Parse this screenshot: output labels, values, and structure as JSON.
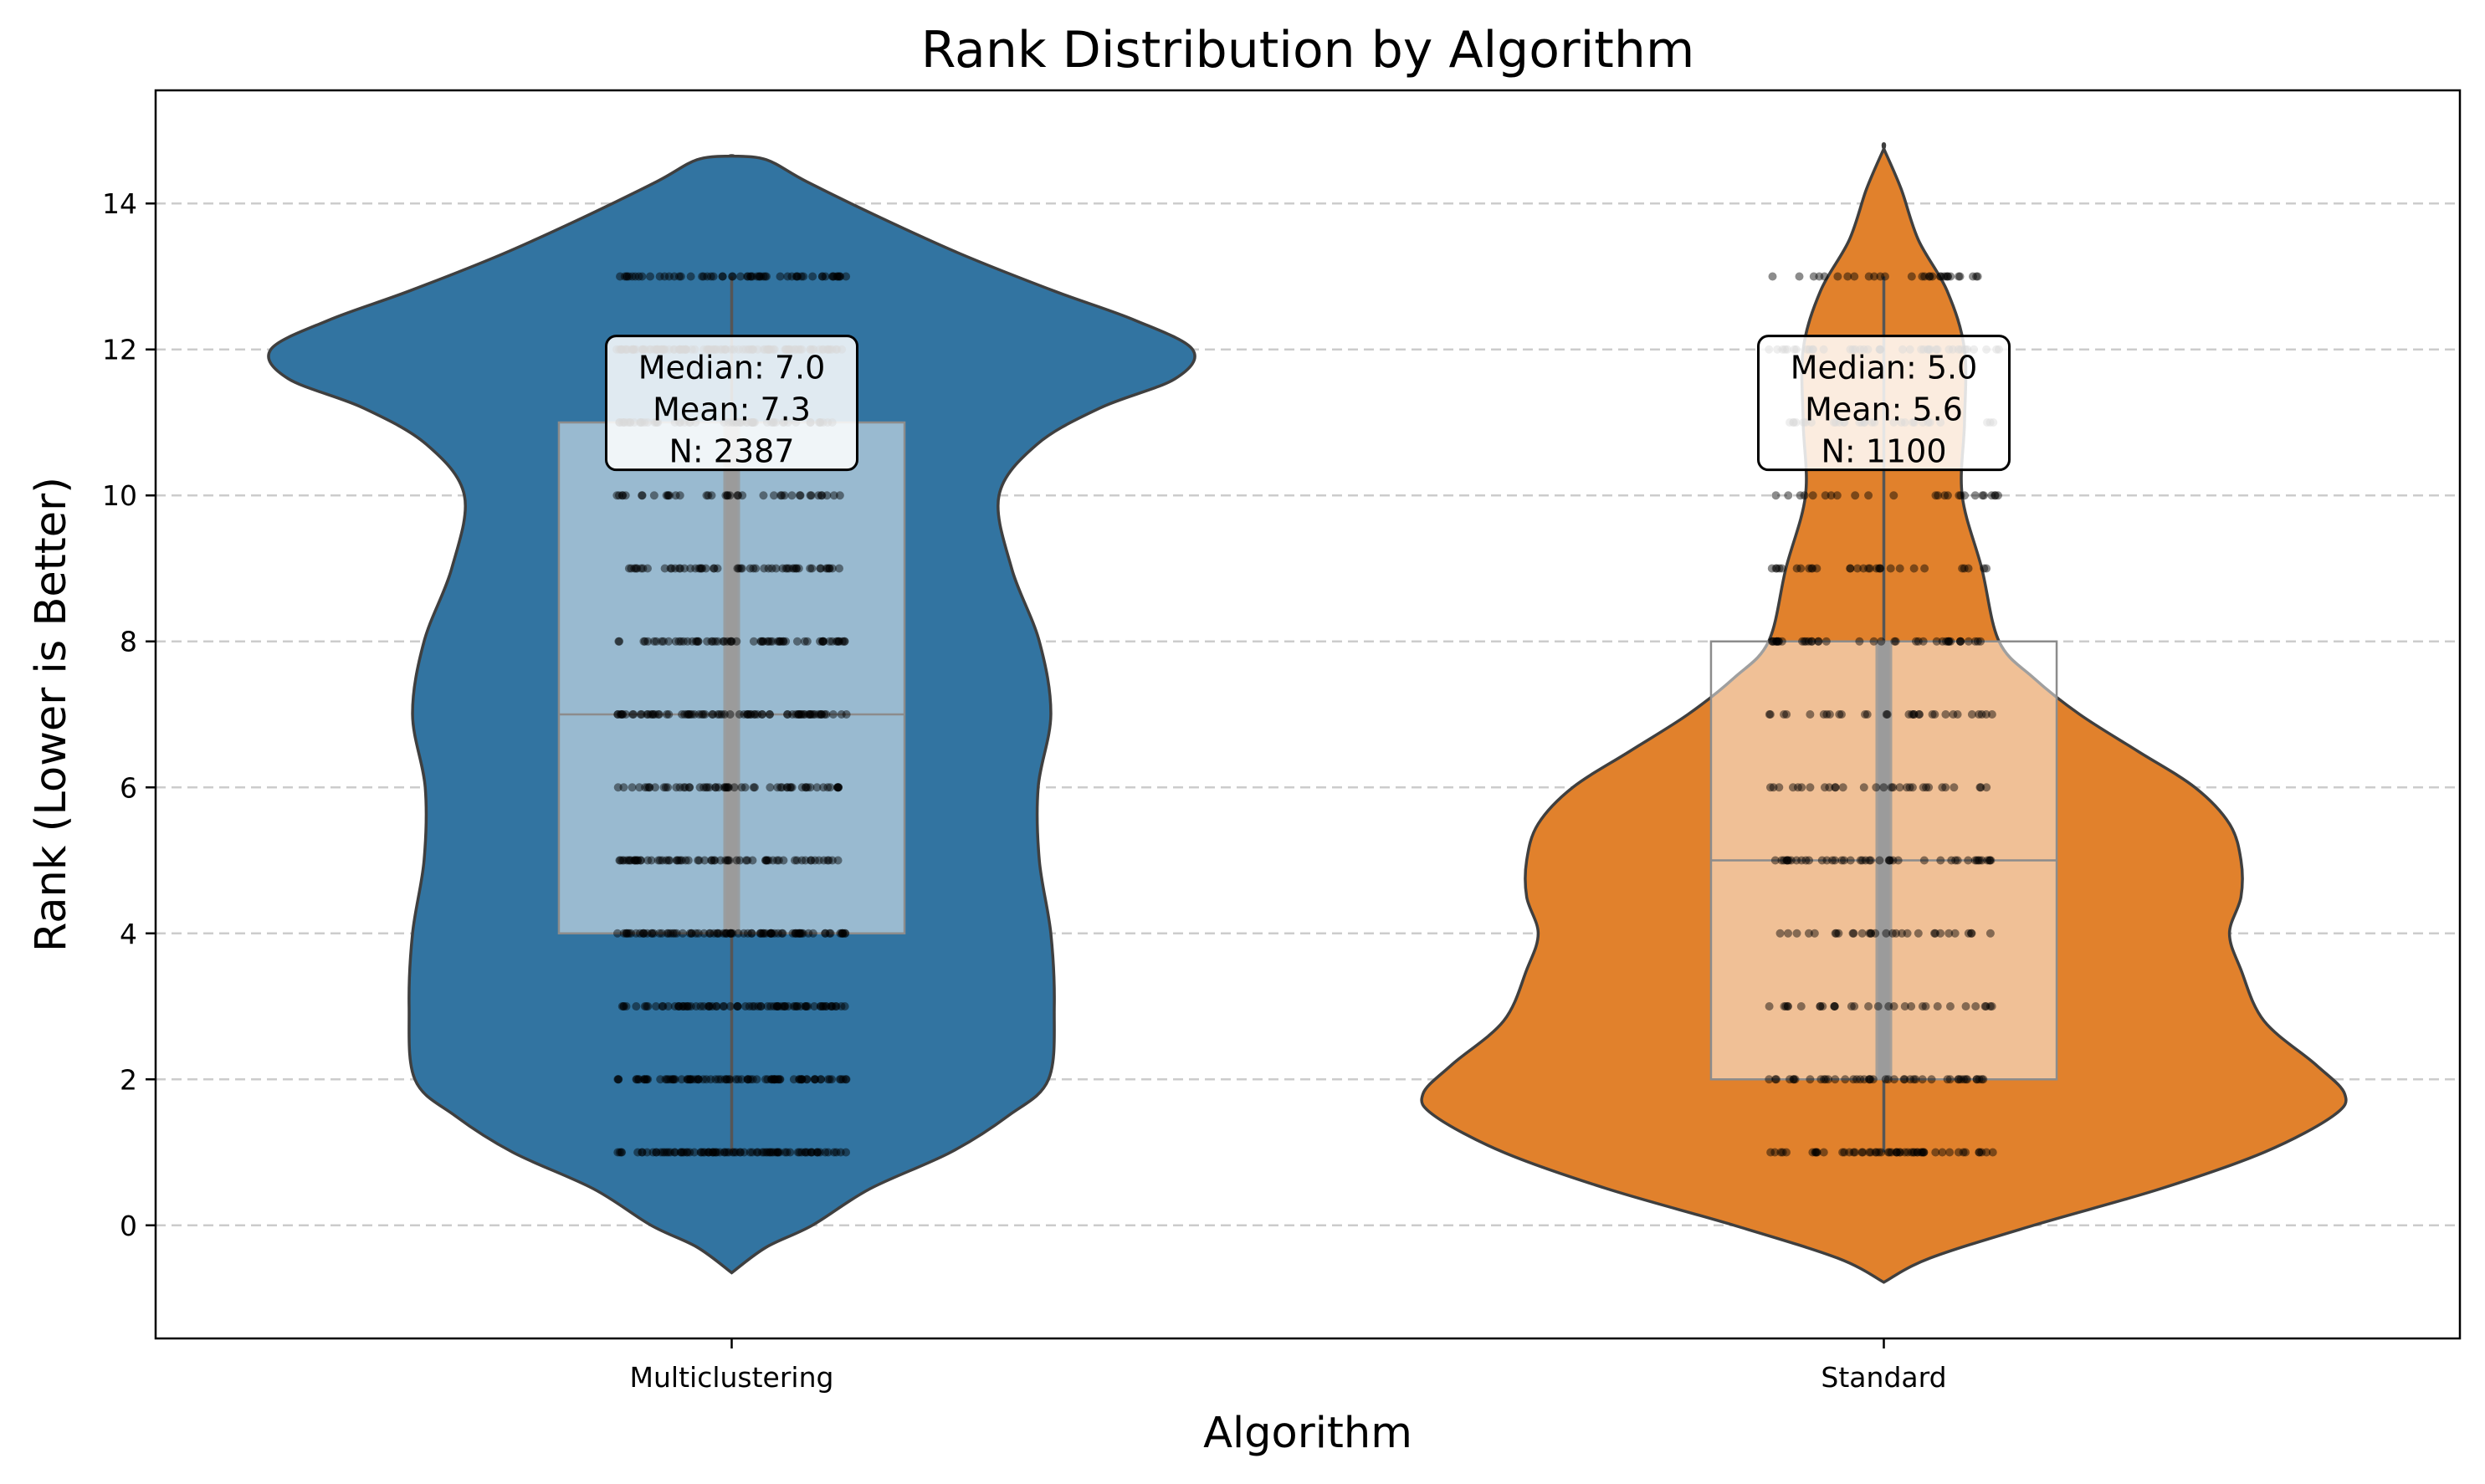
{
  "chart_data": {
    "type": "violin",
    "title": "Rank Distribution by Algorithm",
    "xlabel": "Algorithm",
    "ylabel": "Rank (Lower is Better)",
    "categories": [
      "Multiclustering",
      "Standard"
    ],
    "ylim": [
      -1.55,
      15.55
    ],
    "yticks": [
      0,
      2,
      4,
      6,
      8,
      10,
      12,
      14
    ],
    "grid": {
      "y": true,
      "style": "dashed"
    },
    "colors": {
      "Multiclustering": "#3274a1",
      "Standard": "#e1812c",
      "box": "#ffffff",
      "points": "#000000",
      "grid": "#cccccc"
    },
    "series": [
      {
        "category": "Multiclustering",
        "box": {
          "q1": 4,
          "median": 7,
          "q3": 11,
          "whisker_low": 1,
          "whisker_high": 13
        },
        "stats": {
          "median": "Median: 7.0",
          "mean": "Mean: 7.3",
          "n": "N: 2387"
        },
        "density": [
          [
            -0.65,
            0.0
          ],
          [
            -0.3,
            0.03
          ],
          [
            0.0,
            0.07
          ],
          [
            0.5,
            0.12
          ],
          [
            1.0,
            0.19
          ],
          [
            1.5,
            0.24
          ],
          [
            2.0,
            0.275
          ],
          [
            3.0,
            0.28
          ],
          [
            4.0,
            0.277
          ],
          [
            5.0,
            0.267
          ],
          [
            6.0,
            0.266
          ],
          [
            7.0,
            0.277
          ],
          [
            8.0,
            0.267
          ],
          [
            9.0,
            0.243
          ],
          [
            10.0,
            0.232
          ],
          [
            10.7,
            0.265
          ],
          [
            11.2,
            0.32
          ],
          [
            11.6,
            0.385
          ],
          [
            12.0,
            0.4
          ],
          [
            12.4,
            0.35
          ],
          [
            12.8,
            0.28
          ],
          [
            13.3,
            0.2
          ],
          [
            13.8,
            0.13
          ],
          [
            14.3,
            0.065
          ],
          [
            14.6,
            0.03
          ],
          [
            14.65,
            0.0
          ]
        ],
        "points": [
          {
            "rank": 1,
            "count": 90
          },
          {
            "rank": 2,
            "count": 90
          },
          {
            "rank": 3,
            "count": 80
          },
          {
            "rank": 4,
            "count": 90
          },
          {
            "rank": 5,
            "count": 70
          },
          {
            "rank": 6,
            "count": 60
          },
          {
            "rank": 7,
            "count": 80
          },
          {
            "rank": 8,
            "count": 65
          },
          {
            "rank": 9,
            "count": 55
          },
          {
            "rank": 10,
            "count": 40
          },
          {
            "rank": 11,
            "count": 60
          },
          {
            "rank": 12,
            "count": 110
          },
          {
            "rank": 13,
            "count": 60
          }
        ]
      },
      {
        "category": "Standard",
        "box": {
          "q1": 2,
          "median": 5,
          "q3": 8,
          "whisker_low": 1,
          "whisker_high": 13
        },
        "stats": {
          "median": "Median: 5.0",
          "mean": "Mean: 5.6",
          "n": "N: 1100"
        },
        "density": [
          [
            -0.78,
            0.0
          ],
          [
            -0.45,
            0.04
          ],
          [
            0.0,
            0.13
          ],
          [
            0.5,
            0.24
          ],
          [
            1.0,
            0.33
          ],
          [
            1.5,
            0.39
          ],
          [
            1.8,
            0.4
          ],
          [
            2.2,
            0.375
          ],
          [
            2.8,
            0.33
          ],
          [
            3.5,
            0.31
          ],
          [
            4.0,
            0.3
          ],
          [
            4.5,
            0.31
          ],
          [
            5.0,
            0.31
          ],
          [
            5.5,
            0.3
          ],
          [
            6.0,
            0.27
          ],
          [
            6.5,
            0.22
          ],
          [
            7.0,
            0.17
          ],
          [
            7.5,
            0.13
          ],
          [
            8.0,
            0.1
          ],
          [
            9.0,
            0.085
          ],
          [
            10.0,
            0.068
          ],
          [
            11.0,
            0.07
          ],
          [
            12.0,
            0.07
          ],
          [
            12.8,
            0.055
          ],
          [
            13.5,
            0.03
          ],
          [
            14.2,
            0.015
          ],
          [
            14.75,
            0.0
          ]
        ],
        "points": [
          {
            "rank": 1,
            "count": 55
          },
          {
            "rank": 2,
            "count": 45
          },
          {
            "rank": 3,
            "count": 30
          },
          {
            "rank": 4,
            "count": 30
          },
          {
            "rank": 5,
            "count": 45
          },
          {
            "rank": 6,
            "count": 30
          },
          {
            "rank": 7,
            "count": 30
          },
          {
            "rank": 8,
            "count": 40
          },
          {
            "rank": 9,
            "count": 30
          },
          {
            "rank": 10,
            "count": 25
          },
          {
            "rank": 11,
            "count": 30
          },
          {
            "rank": 12,
            "count": 40
          },
          {
            "rank": 13,
            "count": 30
          }
        ]
      }
    ]
  }
}
